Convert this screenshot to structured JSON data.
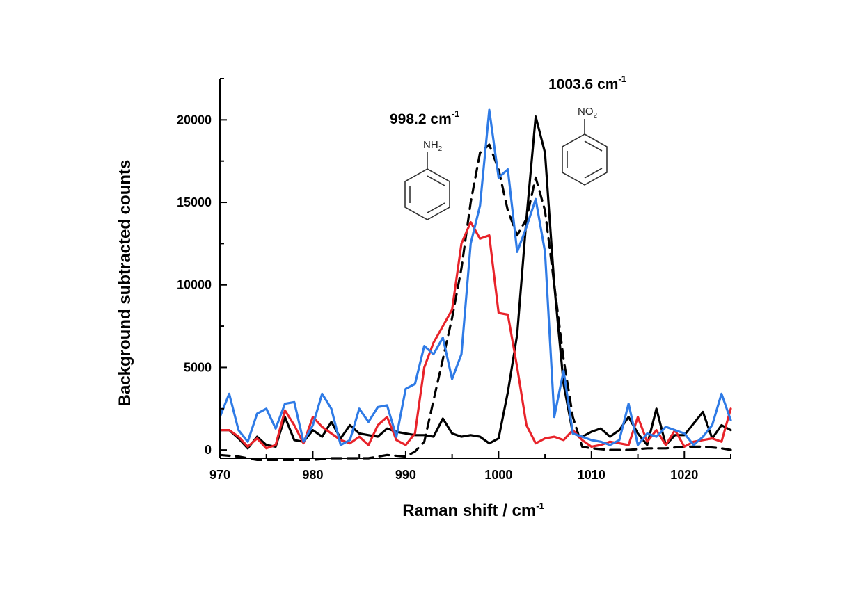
{
  "chart_data": {
    "type": "line",
    "title": "",
    "xlabel": "Raman shift / cm",
    "xlabel_sup": "-1",
    "ylabel": "Background subtracted counts",
    "xlim": [
      970,
      1025
    ],
    "ylim": [
      -500,
      22500
    ],
    "xticks": [
      970,
      980,
      990,
      1000,
      1010,
      1020
    ],
    "yticks": [
      0,
      5000,
      10000,
      15000,
      20000
    ],
    "grid": false,
    "legend": "none",
    "annotations": [
      {
        "text": "998.2 cm",
        "sup": "-1",
        "x": 996.7,
        "y": 18700
      },
      {
        "text": "1003.6 cm",
        "sup": "-1",
        "x": 1004.8,
        "y": 21900
      }
    ],
    "structures": [
      {
        "label": "NH",
        "subscript": "2",
        "name": "aniline"
      },
      {
        "label": "NO",
        "subscript": "2",
        "name": "nitrobenzene"
      }
    ],
    "series": [
      {
        "color": "#000000",
        "style": "solid",
        "x": [
          970,
          971,
          972,
          973,
          974,
          975,
          976,
          977,
          978,
          979,
          980,
          981,
          982,
          983,
          984,
          985,
          986,
          987,
          988,
          989,
          990,
          991,
          992,
          993,
          994,
          995,
          996,
          997,
          998,
          999,
          1000,
          1001,
          1002,
          1003,
          1004,
          1005,
          1006,
          1007,
          1008,
          1009,
          1010,
          1011,
          1012,
          1013,
          1014,
          1015,
          1016,
          1017,
          1018,
          1019,
          1020,
          1021,
          1022,
          1023,
          1024,
          1025
        ],
        "y": [
          1200,
          1200,
          700,
          100,
          800,
          300,
          200,
          2000,
          600,
          500,
          1200,
          800,
          1700,
          700,
          1500,
          1000,
          900,
          800,
          1300,
          1100,
          1000,
          900,
          900,
          800,
          1900,
          1000,
          800,
          900,
          800,
          400,
          700,
          3500,
          7000,
          14000,
          20200,
          18000,
          10000,
          4000,
          1000,
          800,
          1100,
          1300,
          800,
          1200,
          2000,
          1000,
          300,
          2500,
          300,
          900,
          900,
          1600,
          2300,
          700,
          1500,
          1200
        ]
      },
      {
        "color": "#000000",
        "style": "dashed",
        "x": [
          970,
          972,
          974,
          976,
          978,
          980,
          982,
          984,
          986,
          988,
          990,
          991,
          992,
          993,
          994,
          995,
          996,
          997,
          998,
          999,
          1000,
          1001,
          1002,
          1003,
          1004,
          1005,
          1006,
          1007,
          1008,
          1009,
          1010,
          1012,
          1014,
          1016,
          1018,
          1020,
          1022,
          1024,
          1025
        ],
        "y": [
          -300,
          -400,
          -600,
          -600,
          -600,
          -600,
          -500,
          -500,
          -500,
          -300,
          -400,
          -100,
          500,
          3000,
          5500,
          8000,
          11000,
          15000,
          18000,
          18500,
          17000,
          14500,
          13000,
          14000,
          16500,
          14500,
          10000,
          5500,
          2000,
          200,
          100,
          0,
          0,
          100,
          100,
          200,
          200,
          100,
          0
        ]
      },
      {
        "color": "#e8232a",
        "style": "solid",
        "x": [
          970,
          971,
          972,
          973,
          974,
          975,
          976,
          977,
          978,
          979,
          980,
          981,
          982,
          983,
          984,
          985,
          986,
          987,
          988,
          989,
          990,
          991,
          992,
          993,
          994,
          995,
          996,
          997,
          998,
          999,
          1000,
          1001,
          1002,
          1003,
          1004,
          1005,
          1006,
          1007,
          1008,
          1009,
          1010,
          1011,
          1012,
          1013,
          1014,
          1015,
          1016,
          1017,
          1018,
          1019,
          1020,
          1021,
          1022,
          1023,
          1024,
          1025
        ],
        "y": [
          1200,
          1200,
          800,
          200,
          700,
          100,
          300,
          2400,
          1500,
          400,
          2000,
          1400,
          1000,
          600,
          400,
          800,
          300,
          1500,
          2000,
          600,
          300,
          1000,
          5000,
          6500,
          7500,
          8500,
          12500,
          13800,
          12800,
          13000,
          8300,
          8200,
          5000,
          1500,
          400,
          700,
          800,
          600,
          1200,
          600,
          200,
          300,
          500,
          400,
          300,
          2000,
          500,
          1200,
          300,
          1200,
          200,
          500,
          600,
          700,
          500,
          2500
        ]
      },
      {
        "color": "#2f7be6",
        "style": "solid",
        "x": [
          970,
          971,
          972,
          973,
          974,
          975,
          976,
          977,
          978,
          979,
          980,
          981,
          982,
          983,
          984,
          985,
          986,
          987,
          988,
          989,
          990,
          991,
          992,
          993,
          994,
          995,
          996,
          997,
          998,
          999,
          1000,
          1001,
          1002,
          1003,
          1004,
          1005,
          1006,
          1007,
          1008,
          1009,
          1010,
          1011,
          1012,
          1013,
          1014,
          1015,
          1016,
          1017,
          1018,
          1019,
          1020,
          1021,
          1022,
          1023,
          1024,
          1025
        ],
        "y": [
          2000,
          3400,
          1200,
          500,
          2200,
          2500,
          1300,
          2800,
          2900,
          500,
          1500,
          3400,
          2500,
          300,
          600,
          2500,
          1700,
          2600,
          2700,
          800,
          3700,
          4000,
          6300,
          5800,
          6800,
          4300,
          5800,
          12500,
          14800,
          20600,
          16500,
          17000,
          12000,
          13500,
          15200,
          12000,
          2000,
          4800,
          1000,
          800,
          600,
          500,
          300,
          600,
          2800,
          300,
          1000,
          800,
          1400,
          1200,
          1000,
          300,
          800,
          1500,
          3400,
          1800
        ]
      }
    ]
  }
}
